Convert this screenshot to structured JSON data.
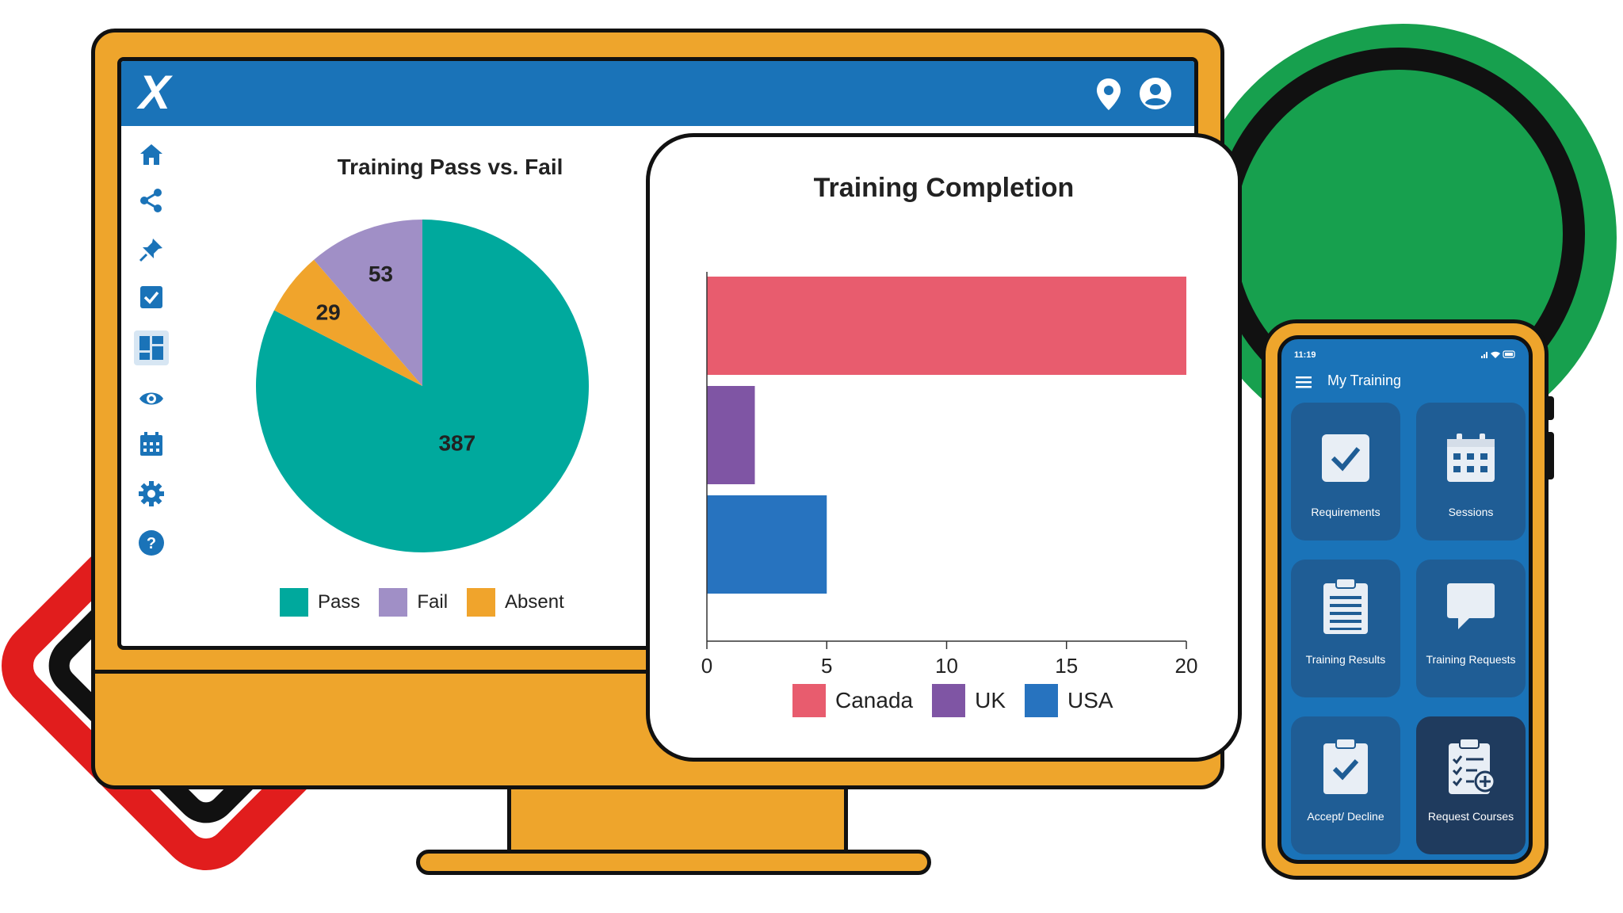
{
  "app": {
    "logo_text": "X"
  },
  "header": {
    "icons": [
      "location-pin-icon",
      "user-account-icon"
    ]
  },
  "sidebar": {
    "icons": [
      "home-icon",
      "share-icon",
      "pin-icon",
      "checkbox-icon",
      "dashboard-icon",
      "eye-icon",
      "calendar-icon",
      "gear-icon",
      "help-icon"
    ],
    "active_index": 4
  },
  "pie_chart": {
    "chart_data": {
      "type": "pie",
      "title": "Training Pass vs. Fail",
      "slices": [
        {
          "name": "Pass",
          "value": 387,
          "color": "#00a99d"
        },
        {
          "name": "Fail",
          "value": 53,
          "color": "#a08fc6"
        },
        {
          "name": "Absent",
          "value": 29,
          "color": "#f0a42c"
        }
      ],
      "legend": [
        "Pass",
        "Fail",
        "Absent"
      ],
      "legend_position": "bottom"
    }
  },
  "bar_chart": {
    "chart_data": {
      "type": "bar",
      "orientation": "horizontal",
      "title": "Training Completion",
      "categories": [
        "Canada",
        "UK",
        "USA"
      ],
      "values": [
        20,
        2,
        5
      ],
      "colors": [
        "#e85c6e",
        "#7f55a4",
        "#2773bf"
      ],
      "xlim": [
        0,
        20
      ],
      "xticks": [
        "0",
        "5",
        "10",
        "15",
        "20"
      ],
      "legend_position": "bottom"
    }
  },
  "phone": {
    "status_time": "11:19",
    "title": "My Training",
    "tiles": [
      {
        "label": "Requirements",
        "icon": "checkbox-icon"
      },
      {
        "label": "Sessions",
        "icon": "calendar-icon"
      },
      {
        "label": "Training Results",
        "icon": "clipboard-list-icon"
      },
      {
        "label": "Training Requests",
        "icon": "chat-bubble-icon"
      },
      {
        "label": "Accept/ Decline",
        "icon": "clipboard-check-icon"
      },
      {
        "label": "Request Courses",
        "icon": "clipboard-add-icon"
      }
    ]
  }
}
